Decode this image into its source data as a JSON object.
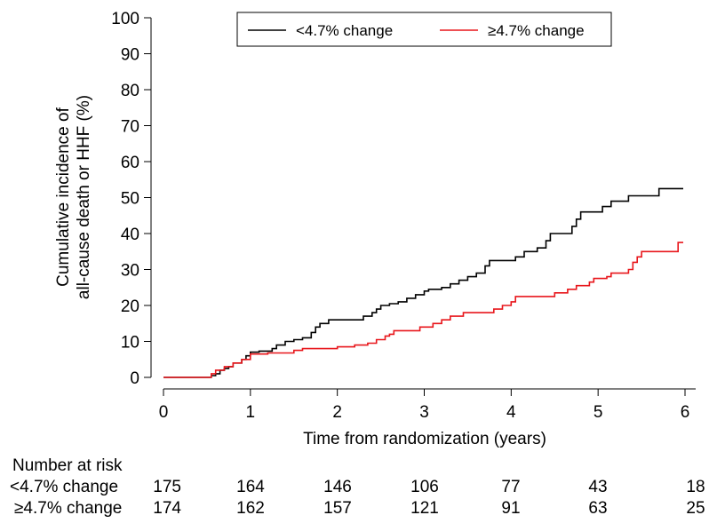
{
  "chart_data": {
    "type": "line",
    "title": "",
    "xlabel": "Time from randomization (years)",
    "ylabel_lines": [
      "Cumulative incidence of",
      "all-cause death or HHF (%)"
    ],
    "xlim": [
      0,
      6
    ],
    "ylim": [
      0,
      100
    ],
    "xticks": [
      "0",
      "1",
      "2",
      "3",
      "4",
      "5",
      "6"
    ],
    "yticks": [
      "0",
      "10",
      "20",
      "30",
      "40",
      "50",
      "60",
      "70",
      "80",
      "90",
      "100"
    ],
    "legend_position": "top-right",
    "series": [
      {
        "name": "<4.7% change",
        "color": "#000000",
        "points": [
          [
            0,
            0
          ],
          [
            0.5,
            0
          ],
          [
            0.55,
            0.5
          ],
          [
            0.6,
            1
          ],
          [
            0.65,
            2
          ],
          [
            0.7,
            2.5
          ],
          [
            0.75,
            3
          ],
          [
            0.8,
            4
          ],
          [
            0.9,
            5
          ],
          [
            0.95,
            6
          ],
          [
            1.0,
            7
          ],
          [
            1.1,
            7.3
          ],
          [
            1.25,
            8
          ],
          [
            1.3,
            9
          ],
          [
            1.4,
            10
          ],
          [
            1.5,
            10.5
          ],
          [
            1.6,
            11
          ],
          [
            1.7,
            12.5
          ],
          [
            1.75,
            14
          ],
          [
            1.8,
            15
          ],
          [
            1.9,
            16
          ],
          [
            2.2,
            16
          ],
          [
            2.3,
            17
          ],
          [
            2.4,
            18
          ],
          [
            2.45,
            19
          ],
          [
            2.5,
            20
          ],
          [
            2.6,
            20.5
          ],
          [
            2.7,
            21
          ],
          [
            2.8,
            22
          ],
          [
            2.9,
            23
          ],
          [
            3.0,
            24
          ],
          [
            3.05,
            24.5
          ],
          [
            3.2,
            25
          ],
          [
            3.3,
            26
          ],
          [
            3.4,
            27
          ],
          [
            3.5,
            28
          ],
          [
            3.6,
            29
          ],
          [
            3.7,
            31
          ],
          [
            3.75,
            32.5
          ],
          [
            4.0,
            32.5
          ],
          [
            4.05,
            33.5
          ],
          [
            4.15,
            35
          ],
          [
            4.3,
            36
          ],
          [
            4.4,
            38
          ],
          [
            4.45,
            40
          ],
          [
            4.65,
            40
          ],
          [
            4.7,
            42
          ],
          [
            4.75,
            44
          ],
          [
            4.8,
            46
          ],
          [
            5.0,
            46
          ],
          [
            5.05,
            47.5
          ],
          [
            5.15,
            49
          ],
          [
            5.35,
            50.5
          ],
          [
            5.65,
            50.5
          ],
          [
            5.7,
            52.5
          ],
          [
            5.98,
            52.5
          ]
        ]
      },
      {
        "name": "≥4.7% change",
        "color": "#e8161b",
        "points": [
          [
            0,
            0
          ],
          [
            0.5,
            0
          ],
          [
            0.55,
            1
          ],
          [
            0.6,
            2
          ],
          [
            0.7,
            3
          ],
          [
            0.8,
            4
          ],
          [
            0.9,
            5
          ],
          [
            1.0,
            6.5
          ],
          [
            1.2,
            6.8
          ],
          [
            1.5,
            7.5
          ],
          [
            1.6,
            8
          ],
          [
            1.95,
            8
          ],
          [
            2.0,
            8.5
          ],
          [
            2.2,
            9
          ],
          [
            2.35,
            9.5
          ],
          [
            2.45,
            10.5
          ],
          [
            2.55,
            11.5
          ],
          [
            2.6,
            12
          ],
          [
            2.65,
            13
          ],
          [
            2.9,
            13
          ],
          [
            2.95,
            14
          ],
          [
            3.1,
            15
          ],
          [
            3.2,
            16
          ],
          [
            3.3,
            17
          ],
          [
            3.45,
            18
          ],
          [
            3.75,
            18
          ],
          [
            3.8,
            19
          ],
          [
            3.9,
            20
          ],
          [
            4.0,
            21
          ],
          [
            4.05,
            22.5
          ],
          [
            4.45,
            22.5
          ],
          [
            4.5,
            23.5
          ],
          [
            4.65,
            24.5
          ],
          [
            4.75,
            25.5
          ],
          [
            4.9,
            26.5
          ],
          [
            4.95,
            27.5
          ],
          [
            5.1,
            28
          ],
          [
            5.15,
            29
          ],
          [
            5.3,
            29
          ],
          [
            5.35,
            30
          ],
          [
            5.4,
            32
          ],
          [
            5.45,
            33.5
          ],
          [
            5.5,
            35
          ],
          [
            5.9,
            35
          ],
          [
            5.92,
            37.5
          ],
          [
            5.98,
            37.5
          ]
        ]
      }
    ],
    "risk_table": {
      "title": "Number at risk",
      "rows": [
        {
          "label": "<4.7% change",
          "values": [
            "175",
            "164",
            "146",
            "106",
            "77",
            "43",
            "18"
          ]
        },
        {
          "label": "≥4.7% change",
          "values": [
            "174",
            "162",
            "157",
            "121",
            "91",
            "63",
            "25"
          ]
        }
      ]
    }
  }
}
